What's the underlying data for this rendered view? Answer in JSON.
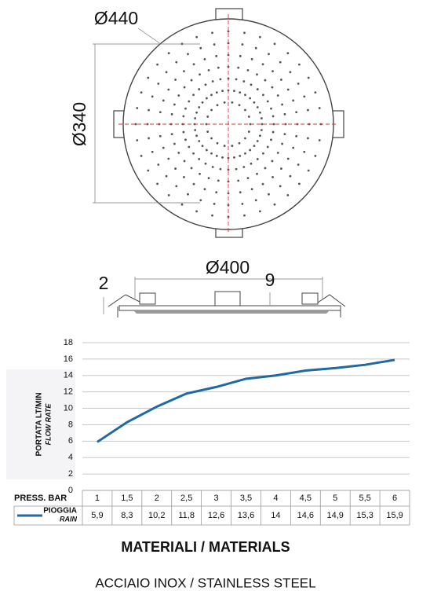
{
  "drawing": {
    "diameter_outer": "Ø440",
    "diameter_inner": "Ø340",
    "diameter_side": "Ø400",
    "thickness": "2",
    "height": "9"
  },
  "chart_data": {
    "type": "line",
    "y_label": "PORTATA LT/MIN",
    "y_label_en": "FLOW RATE",
    "x_label": "PRESS. BAR",
    "categories": [
      "1",
      "1,5",
      "2",
      "2,5",
      "3",
      "3,5",
      "4",
      "4,5",
      "5",
      "5,5",
      "6"
    ],
    "series": [
      {
        "name": "PIOGGIA",
        "name_en": "RAIN",
        "color": "#1f6aa0",
        "values": [
          5.9,
          8.3,
          10.2,
          11.8,
          12.6,
          13.6,
          14,
          14.6,
          14.9,
          15.3,
          15.9
        ],
        "value_labels": [
          "5,9",
          "8,3",
          "10,2",
          "11,8",
          "12,6",
          "13,6",
          "14",
          "14,6",
          "14,9",
          "15,3",
          "15,9"
        ]
      }
    ],
    "ylim": [
      0,
      18
    ],
    "yticks": [
      0,
      2,
      4,
      6,
      8,
      10,
      12,
      14,
      16,
      18
    ],
    "grid": true
  },
  "materials": {
    "title": "MATERIALI / MATERIALS",
    "text": "ACCIAIO INOX / STAINLESS STEEL"
  }
}
